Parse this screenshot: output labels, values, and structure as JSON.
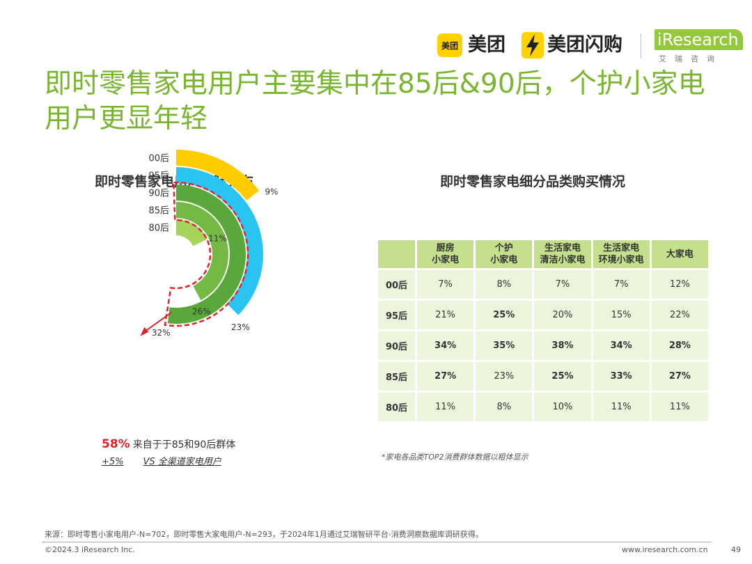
{
  "header": {
    "meituan_badge": "美团",
    "meituan_text": "美团",
    "shangou_text": "美团闪购",
    "iresearch_text": "iResearch",
    "iresearch_sub": "艾瑞咨询"
  },
  "title": "即时零售家电用户主要集中在85后&90后，个护小家电用户更显年轻",
  "left": {
    "subtitle": "即时零售家电用户代际分布",
    "note_pct": "58%",
    "note_text": "来自于于85和90后群体",
    "vs_delta": "+5%",
    "vs_text": "VS 全渠道家电用户"
  },
  "chart_data": [
    {
      "type": "radial-bar",
      "title": "即时零售家电用户代际分布",
      "categories": [
        "00后",
        "95后",
        "90后",
        "85后",
        "80后"
      ],
      "values": [
        9,
        23,
        32,
        26,
        11
      ],
      "labels": [
        "9%",
        "23%",
        "32%",
        "26%",
        "11%"
      ],
      "colors": [
        "#ffcc00",
        "#29c4ef",
        "#5aa73b",
        "#74b944",
        "#a6d35a"
      ],
      "highlight": [
        "90后",
        "85后"
      ],
      "highlight_color": "#e0232b"
    },
    {
      "type": "table",
      "title": "即时零售家电细分品类购买情况",
      "columns": [
        "厨房\n小家电",
        "个护\n小家电",
        "生活家电\n清洁小家电",
        "生活家电\n环境小家电",
        "大家电"
      ],
      "rows": [
        {
          "label": "00后",
          "values": [
            "7%",
            "8%",
            "7%",
            "7%",
            "12%"
          ],
          "bold": [
            false,
            false,
            false,
            false,
            false
          ]
        },
        {
          "label": "95后",
          "values": [
            "21%",
            "25%",
            "20%",
            "15%",
            "22%"
          ],
          "bold": [
            false,
            true,
            false,
            false,
            false
          ]
        },
        {
          "label": "90后",
          "values": [
            "34%",
            "35%",
            "38%",
            "34%",
            "28%"
          ],
          "bold": [
            true,
            true,
            true,
            true,
            true
          ]
        },
        {
          "label": "85后",
          "values": [
            "27%",
            "23%",
            "25%",
            "33%",
            "27%"
          ],
          "bold": [
            true,
            false,
            true,
            true,
            true
          ]
        },
        {
          "label": "80后",
          "values": [
            "11%",
            "8%",
            "10%",
            "11%",
            "11%"
          ],
          "bold": [
            false,
            false,
            false,
            false,
            false
          ]
        }
      ]
    }
  ],
  "right": {
    "subtitle": "即时零售家电细分品类购买情况",
    "note": "*家电各品类TOP2消费群体数据以粗体显示"
  },
  "footer": {
    "source": "来源：即时零售小家电用户-N=702，即时零售大家电用户-N=293，于2024年1月通过艾瑞智研平台-消费洞察数据库调研获得。",
    "copyright": "©2024.3 iResearch Inc.",
    "website": "www.iresearch.com.cn",
    "page": "49"
  },
  "colors": {
    "title": "#7ab530",
    "header_cell": "#c4e08d",
    "body_cell": "#ecf4dc"
  }
}
